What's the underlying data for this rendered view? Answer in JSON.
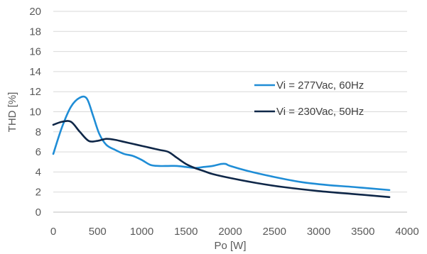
{
  "chart_data": {
    "type": "line",
    "xlabel": "Po [W]",
    "ylabel": "THD [%]",
    "xlim": [
      0,
      4000
    ],
    "ylim": [
      0,
      20
    ],
    "xticks": [
      0,
      500,
      1000,
      1500,
      2000,
      2500,
      3000,
      3500,
      4000
    ],
    "yticks": [
      0,
      2,
      4,
      6,
      8,
      10,
      12,
      14,
      16,
      18,
      20
    ],
    "grid": "horizontal",
    "legend_position": "right",
    "series": [
      {
        "name": "Vi = 277Vac, 60Hz",
        "color": "#1f8dd6",
        "x": [
          0,
          100,
          200,
          300,
          380,
          450,
          520,
          600,
          700,
          800,
          900,
          1000,
          1100,
          1200,
          1300,
          1400,
          1500,
          1600,
          1700,
          1800,
          1900,
          1950,
          2000,
          2200,
          2500,
          2800,
          3100,
          3400,
          3800
        ],
        "y": [
          5.8,
          8.5,
          10.5,
          11.4,
          11.3,
          9.6,
          7.8,
          6.7,
          6.2,
          5.8,
          5.6,
          5.2,
          4.7,
          4.6,
          4.6,
          4.6,
          4.5,
          4.4,
          4.5,
          4.6,
          4.8,
          4.8,
          4.6,
          4.1,
          3.5,
          3.0,
          2.7,
          2.5,
          2.2
        ]
      },
      {
        "name": "Vi = 230Vac, 50Hz",
        "color": "#0f2748",
        "x": [
          0,
          100,
          200,
          300,
          400,
          500,
          600,
          700,
          800,
          900,
          1000,
          1100,
          1200,
          1300,
          1400,
          1500,
          1600,
          1700,
          1800,
          2000,
          2300,
          2600,
          3000,
          3400,
          3800
        ],
        "y": [
          8.7,
          9.0,
          9.0,
          8.0,
          7.1,
          7.1,
          7.3,
          7.2,
          7.0,
          6.8,
          6.6,
          6.4,
          6.2,
          6.0,
          5.4,
          4.8,
          4.4,
          4.1,
          3.8,
          3.4,
          2.9,
          2.5,
          2.1,
          1.8,
          1.5
        ]
      }
    ]
  }
}
